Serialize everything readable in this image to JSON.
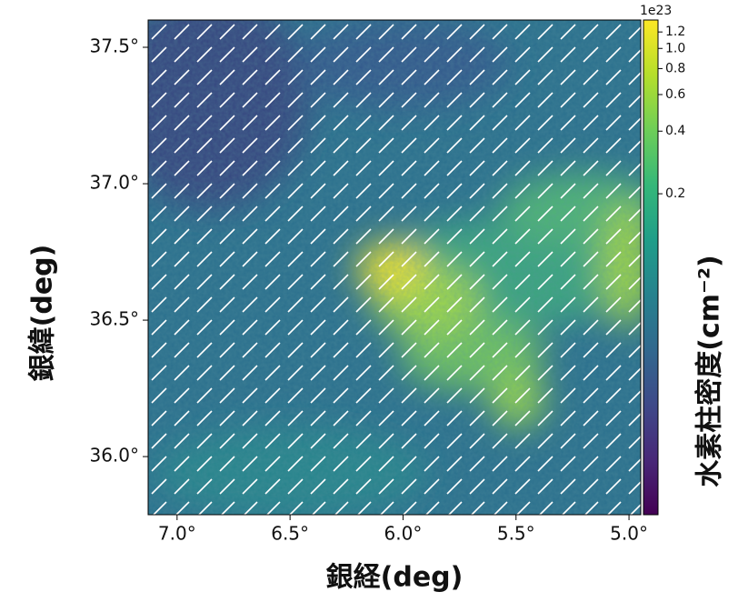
{
  "chart_data": {
    "type": "heatmap",
    "xlabel": "銀経(deg)",
    "ylabel": "銀緯(deg)",
    "xlim": [
      7.128,
      4.948
    ],
    "xticks": [
      {
        "value": 7.0,
        "label": "7.0°"
      },
      {
        "value": 6.5,
        "label": "6.5°"
      },
      {
        "value": 6.0,
        "label": "6.0°"
      },
      {
        "value": 5.5,
        "label": "5.5°"
      },
      {
        "value": 5.0,
        "label": "5.0°"
      }
    ],
    "ylim": [
      35.787,
      37.6
    ],
    "yticks": [
      {
        "value": 36.0,
        "label": "36.0°"
      },
      {
        "value": 36.5,
        "label": "36.5°"
      },
      {
        "value": 37.0,
        "label": "37.0°"
      },
      {
        "value": 37.5,
        "label": "37.5°"
      }
    ],
    "colorbar": {
      "colormap": "viridis",
      "scale": "log",
      "lim": [
        0.00572,
        1.37
      ],
      "ticks": [
        0.2,
        0.4,
        0.6,
        0.8,
        {
          "value": 1.0,
          "label": "1.0"
        },
        1.2
      ],
      "offset_label": "1e23",
      "label": "水素柱密度(cm⁻²)"
    }
  }
}
